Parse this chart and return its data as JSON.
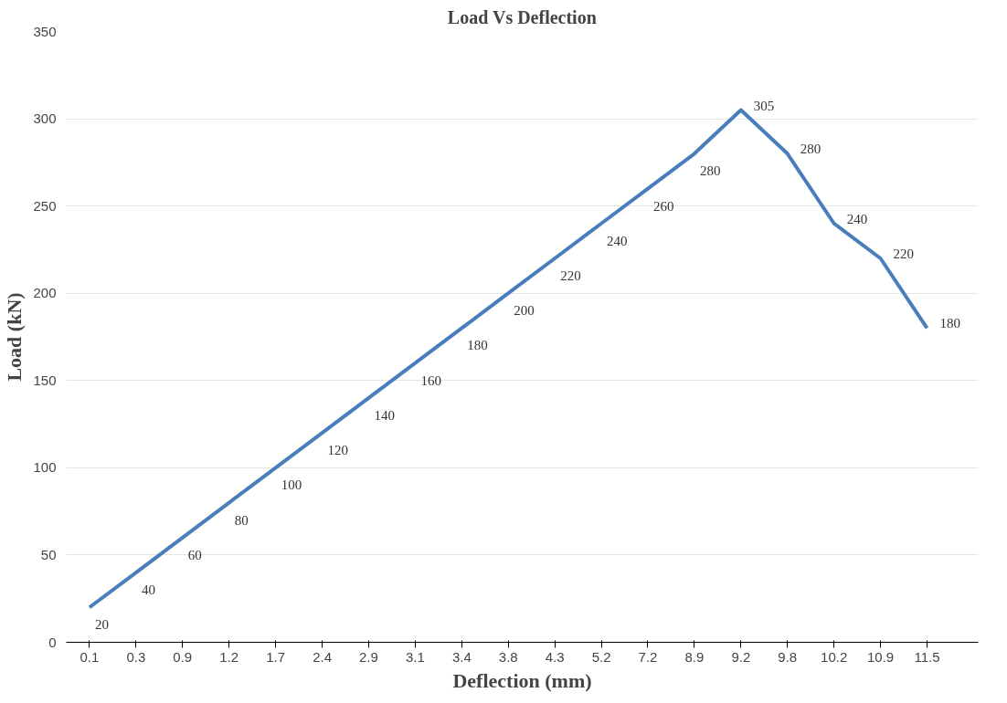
{
  "chart_data": {
    "type": "line",
    "title": "Load Vs Deflection",
    "xlabel": "Deflection (mm)",
    "ylabel": "Load (kN)",
    "categories": [
      "0.1",
      "0.3",
      "0.9",
      "1.2",
      "1.7",
      "2.4",
      "2.9",
      "3.1",
      "3.4",
      "3.8",
      "4.3",
      "5.2",
      "7.2",
      "8.9",
      "9.2",
      "9.8",
      "10.2",
      "10.9",
      "11.5"
    ],
    "series": [
      {
        "color": "#4a7ebb",
        "values": [
          20,
          40,
          60,
          80,
          100,
          120,
          140,
          160,
          180,
          200,
          220,
          240,
          260,
          280,
          305,
          280,
          240,
          220,
          180
        ]
      }
    ],
    "ylim": [
      0,
      350
    ],
    "yticks": [
      0,
      50,
      100,
      150,
      200,
      250,
      300,
      350
    ],
    "grid": "y",
    "data_labels": true,
    "marker": "none",
    "line_style": "solid"
  }
}
